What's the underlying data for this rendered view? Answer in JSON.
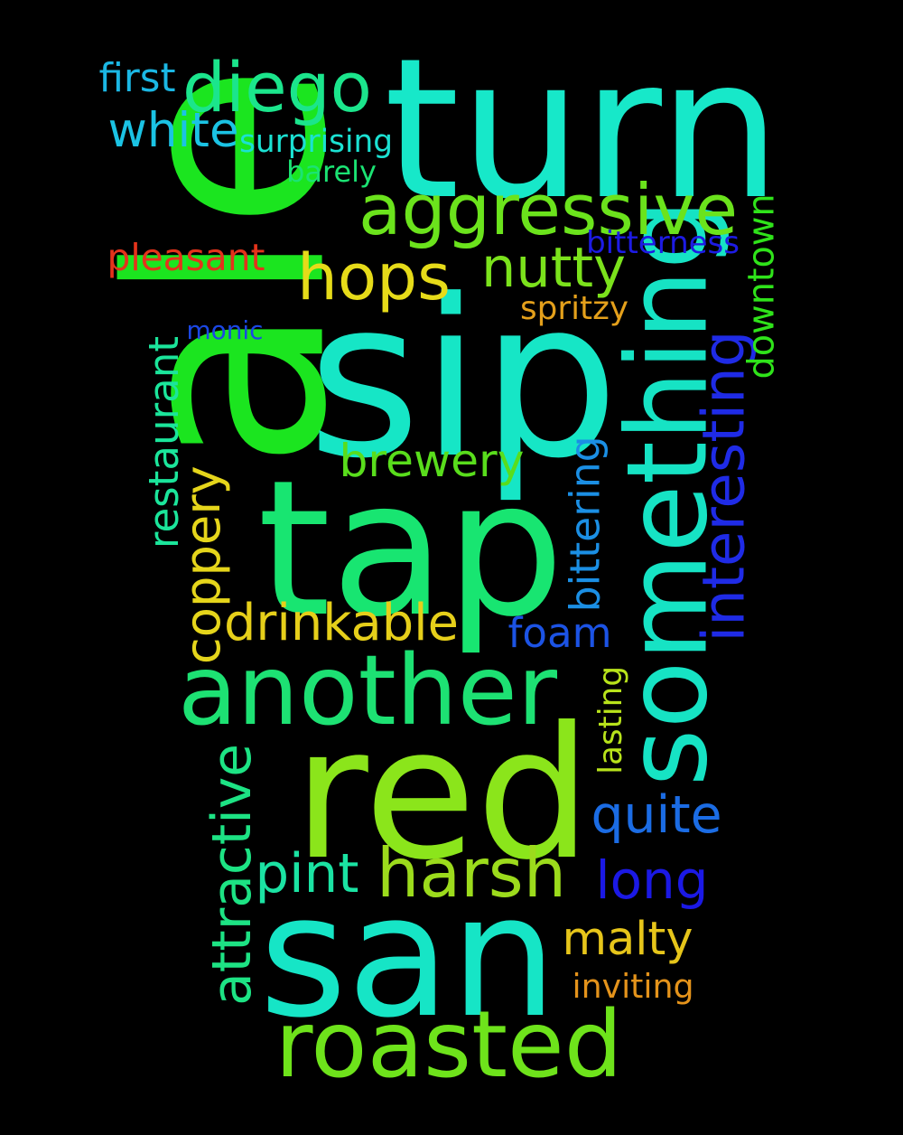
{
  "words": [
    {
      "text": "turn",
      "color": "#17E8C9"
    },
    {
      "text": "ale",
      "color": "#1BE51F"
    },
    {
      "text": "sip",
      "color": "#16E6C6"
    },
    {
      "text": "tap",
      "color": "#18E571"
    },
    {
      "text": "red",
      "color": "#8BE51B"
    },
    {
      "text": "san",
      "color": "#16E5C6"
    },
    {
      "text": "something",
      "color": "#16E3C4"
    },
    {
      "text": "another",
      "color": "#1DE173"
    },
    {
      "text": "diego",
      "color": "#1BE58C"
    },
    {
      "text": "aggressive",
      "color": "#6BE31C"
    },
    {
      "text": "hops",
      "color": "#E6DB19"
    },
    {
      "text": "nutty",
      "color": "#7BE21C"
    },
    {
      "text": "roasted",
      "color": "#6EE31B"
    },
    {
      "text": "harsh",
      "color": "#9CDB1C"
    },
    {
      "text": "interesting",
      "color": "#1F2BE6"
    },
    {
      "text": "brewery",
      "color": "#59DD1C"
    },
    {
      "text": "coppery",
      "color": "#E5D51B"
    },
    {
      "text": "drinkable",
      "color": "#E6CF1A"
    },
    {
      "text": "attractive",
      "color": "#1DE384"
    },
    {
      "text": "foam",
      "color": "#1C53E4"
    },
    {
      "text": "downtown",
      "color": "#2FE31A"
    },
    {
      "text": "long",
      "color": "#1B19E5"
    },
    {
      "text": "quite",
      "color": "#1B6CE4"
    },
    {
      "text": "pint",
      "color": "#1BE3A3"
    },
    {
      "text": "malty",
      "color": "#E6C51A"
    },
    {
      "text": "white",
      "color": "#1BC3E4"
    },
    {
      "text": "restaurant",
      "color": "#1BE59B"
    },
    {
      "text": "bittering",
      "color": "#1B8FE4"
    },
    {
      "text": "pleasant",
      "color": "#E4331B"
    },
    {
      "text": "lasting",
      "color": "#B8E31B"
    },
    {
      "text": "surprising",
      "color": "#1BE1D2"
    },
    {
      "text": "bitterness",
      "color": "#1D1BE4"
    },
    {
      "text": "barely",
      "color": "#1BE373"
    },
    {
      "text": "first",
      "color": "#1BB7E4"
    },
    {
      "text": "spritzy",
      "color": "#E4A01B"
    },
    {
      "text": "monic",
      "color": "#1B47E4"
    },
    {
      "text": "inviting",
      "color": "#E4931B"
    }
  ]
}
